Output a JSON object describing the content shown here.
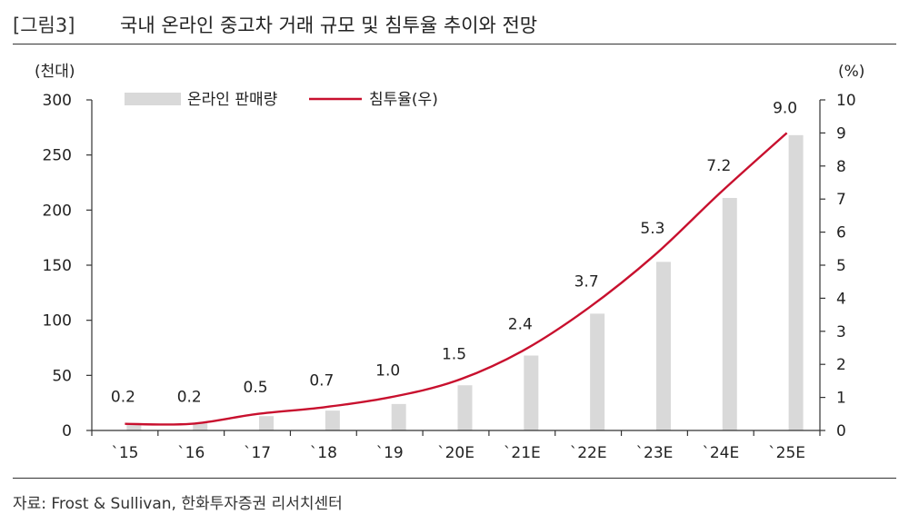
{
  "header": {
    "figure_label": "[그림3]",
    "title": "국내 온라인 중고차 거래 규모 및 침투율 추이와 전망"
  },
  "source": "자료: Frost & Sullivan, 한화투자증권 리서치센터",
  "chart_data": {
    "type": "bar",
    "categories": [
      "`15",
      "`16",
      "`17",
      "`18",
      "`19",
      "`20E",
      "`21E",
      "`22E",
      "`23E",
      "`24E",
      "`25E"
    ],
    "series": [
      {
        "name": "온라인 판매량",
        "type": "bar",
        "axis": "left",
        "color": "#d9d9d9",
        "values": [
          5,
          7,
          13,
          18,
          24,
          41,
          68,
          106,
          153,
          211,
          268
        ]
      },
      {
        "name": "침투율(우)",
        "type": "line",
        "axis": "right",
        "color": "#c8102e",
        "values": [
          0.2,
          0.2,
          0.5,
          0.7,
          1.0,
          1.5,
          2.4,
          3.7,
          5.3,
          7.2,
          9.0
        ],
        "labels": [
          "0.2",
          "0.2",
          "0.5",
          "0.7",
          "1.0",
          "1.5",
          "2.4",
          "3.7",
          "5.3",
          "7.2",
          "9.0"
        ]
      }
    ],
    "y_left": {
      "unit": "(천대)",
      "ylim": [
        0,
        300
      ],
      "ticks": [
        "0",
        "50",
        "100",
        "150",
        "200",
        "250",
        "300"
      ]
    },
    "y_right": {
      "unit": "(%)",
      "ylim": [
        0,
        10
      ],
      "ticks": [
        "0",
        "1",
        "2",
        "3",
        "4",
        "5",
        "6",
        "7",
        "8",
        "9",
        "10"
      ]
    },
    "grid": false,
    "legend": "top-left"
  }
}
